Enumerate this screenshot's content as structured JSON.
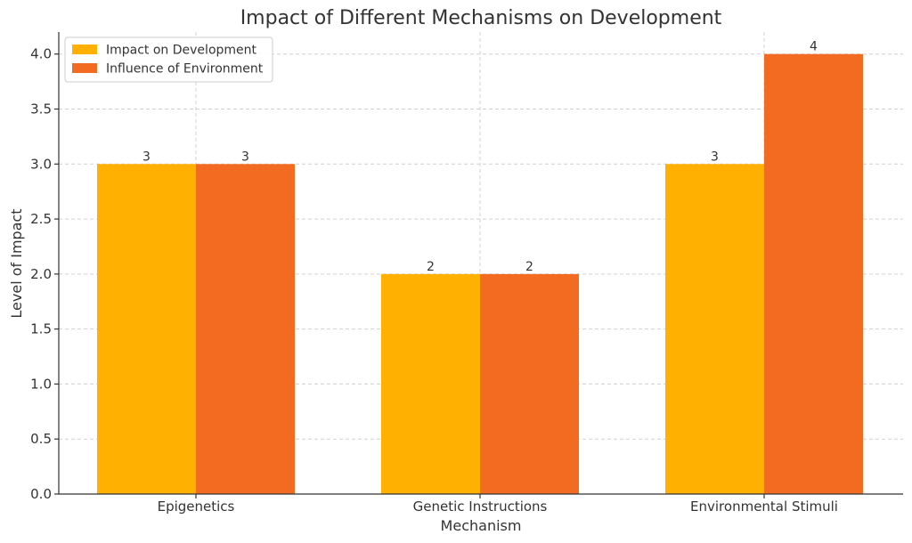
{
  "chart_data": {
    "type": "bar",
    "title": "Impact of Different Mechanisms on Development",
    "xlabel": "Mechanism",
    "ylabel": "Level of Impact",
    "categories": [
      "Epigenetics",
      "Genetic Instructions",
      "Environmental Stimuli"
    ],
    "series": [
      {
        "name": "Impact on Development",
        "values": [
          3,
          2,
          3
        ],
        "color": "#ffb000"
      },
      {
        "name": "Influence of Environment",
        "values": [
          3,
          2,
          4
        ],
        "color": "#f26b21"
      }
    ],
    "ylim": [
      0,
      4.2
    ],
    "yticks": [
      "0.0",
      "0.5",
      "1.0",
      "1.5",
      "2.0",
      "2.5",
      "3.0",
      "3.5",
      "4.0"
    ],
    "grid": true,
    "legend_position": "top-left"
  }
}
